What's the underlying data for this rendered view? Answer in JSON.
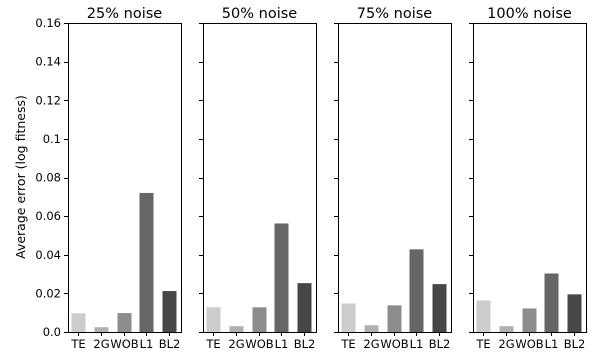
{
  "chart_data": {
    "type": "bar",
    "ylabel": "Average error (log fitness)",
    "ylim": [
      0,
      0.16
    ],
    "yticks": [
      0.0,
      0.02,
      0.04,
      0.06,
      0.08,
      0.1,
      0.12,
      0.14,
      0.16
    ],
    "ytick_labels": [
      "0.0",
      "0.02",
      "0.04",
      "0.06",
      "0.08",
      "0.1",
      "0.12",
      "0.14",
      "0.16"
    ],
    "categories": [
      "TE",
      "2G",
      "WOB",
      "L1",
      "BL2"
    ],
    "colors": [
      "#cccccc",
      "#b0b0b0",
      "#8c8c8c",
      "#666666",
      "#474747"
    ],
    "grid": false,
    "panels": [
      {
        "title": "25% noise",
        "values": [
          0.0097,
          0.0025,
          0.0098,
          0.072,
          0.0212
        ]
      },
      {
        "title": "50% noise",
        "values": [
          0.0128,
          0.003,
          0.0128,
          0.0562,
          0.0253
        ]
      },
      {
        "title": "75% noise",
        "values": [
          0.0148,
          0.0035,
          0.0138,
          0.0428,
          0.0248
        ]
      },
      {
        "title": "100% noise",
        "values": [
          0.0163,
          0.003,
          0.0122,
          0.0303,
          0.0195
        ]
      }
    ]
  }
}
